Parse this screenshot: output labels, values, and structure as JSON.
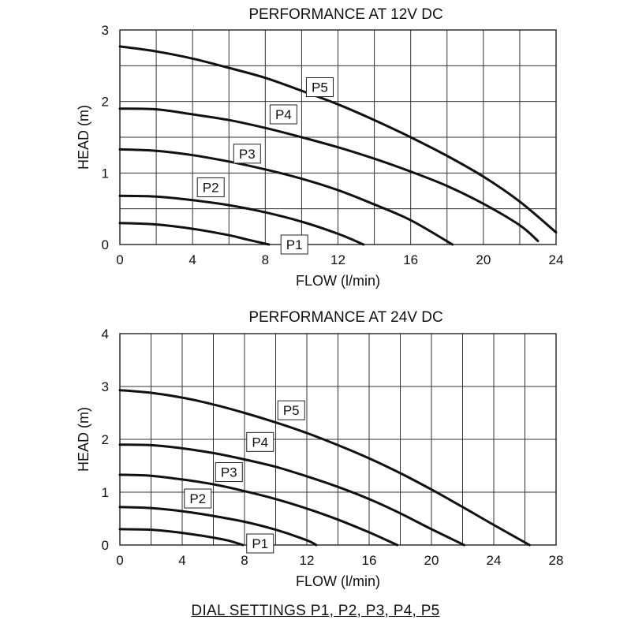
{
  "caption": "DIAL SETTINGS P1, P2, P3, P4, P5",
  "chart_data": [
    {
      "type": "line",
      "title": "PERFORMANCE AT 12V DC",
      "xlabel": "FLOW (l/min)",
      "ylabel": "HEAD (m)",
      "xlim": [
        0,
        24
      ],
      "ylim": [
        0,
        3
      ],
      "xticks": [
        0,
        4,
        8,
        12,
        16,
        20,
        24
      ],
      "yticks": [
        0,
        1,
        2,
        3
      ],
      "x_grid_step": 2,
      "y_grid_step": 0.5,
      "grid": true,
      "series": [
        {
          "name": "P1",
          "x": [
            0,
            2,
            4,
            6,
            7,
            8.2
          ],
          "y": [
            0.3,
            0.28,
            0.22,
            0.13,
            0.07,
            0.0
          ],
          "label_at": [
            9.6,
            0.0
          ]
        },
        {
          "name": "P2",
          "x": [
            0,
            2,
            4,
            6,
            8,
            10,
            12,
            13.4
          ],
          "y": [
            0.68,
            0.67,
            0.62,
            0.55,
            0.45,
            0.32,
            0.15,
            0.0
          ],
          "label_at": [
            5.0,
            0.8
          ]
        },
        {
          "name": "P3",
          "x": [
            0,
            2,
            4,
            6,
            8,
            10,
            12,
            14,
            16,
            18.3
          ],
          "y": [
            1.33,
            1.31,
            1.25,
            1.16,
            1.05,
            0.92,
            0.76,
            0.56,
            0.34,
            0.0
          ],
          "label_at": [
            7.0,
            1.27
          ]
        },
        {
          "name": "P4",
          "x": [
            0,
            2,
            4,
            6,
            8,
            10,
            12,
            14,
            16,
            18,
            20,
            22,
            23
          ],
          "y": [
            1.9,
            1.89,
            1.82,
            1.74,
            1.63,
            1.5,
            1.36,
            1.2,
            1.02,
            0.82,
            0.57,
            0.27,
            0.05
          ],
          "label_at": [
            9.0,
            1.82
          ]
        },
        {
          "name": "P5",
          "x": [
            0,
            2,
            4,
            6,
            8,
            10,
            12,
            14,
            16,
            18,
            20,
            22,
            24
          ],
          "y": [
            2.77,
            2.7,
            2.6,
            2.47,
            2.33,
            2.15,
            1.96,
            1.74,
            1.5,
            1.24,
            0.95,
            0.6,
            0.17
          ],
          "label_at": [
            11.0,
            2.2
          ]
        }
      ]
    },
    {
      "type": "line",
      "title": "PERFORMANCE AT 24V DC",
      "xlabel": "FLOW (l/min)",
      "ylabel": "HEAD (m)",
      "xlim": [
        0,
        28
      ],
      "ylim": [
        0,
        4
      ],
      "xticks": [
        0,
        4,
        8,
        12,
        16,
        20,
        24,
        28
      ],
      "yticks": [
        0,
        1,
        2,
        3,
        4
      ],
      "x_grid_step": 2,
      "y_grid_step": 1,
      "grid": true,
      "series": [
        {
          "name": "P1",
          "x": [
            0,
            2,
            4,
            6,
            7,
            7.9
          ],
          "y": [
            0.3,
            0.29,
            0.23,
            0.14,
            0.08,
            0.0
          ],
          "label_at": [
            9.0,
            0.03
          ]
        },
        {
          "name": "P2",
          "x": [
            0,
            2,
            4,
            6,
            8,
            10,
            12,
            12.6
          ],
          "y": [
            0.72,
            0.7,
            0.64,
            0.55,
            0.44,
            0.29,
            0.09,
            0.0
          ],
          "label_at": [
            5.0,
            0.88
          ]
        },
        {
          "name": "P3",
          "x": [
            0,
            2,
            4,
            6,
            8,
            10,
            12,
            14,
            16,
            17.8
          ],
          "y": [
            1.33,
            1.31,
            1.24,
            1.15,
            1.02,
            0.87,
            0.69,
            0.48,
            0.24,
            0.0
          ],
          "label_at": [
            7.0,
            1.38
          ]
        },
        {
          "name": "P4",
          "x": [
            0,
            2,
            4,
            6,
            8,
            10,
            12,
            14,
            16,
            18,
            20,
            22.1
          ],
          "y": [
            1.9,
            1.89,
            1.83,
            1.74,
            1.62,
            1.48,
            1.3,
            1.1,
            0.87,
            0.6,
            0.3,
            0.0
          ],
          "label_at": [
            9.0,
            1.95
          ]
        },
        {
          "name": "P5",
          "x": [
            0,
            2,
            4,
            6,
            8,
            10,
            12,
            14,
            16,
            18,
            20,
            22,
            24,
            26.3
          ],
          "y": [
            2.93,
            2.88,
            2.79,
            2.66,
            2.5,
            2.32,
            2.12,
            1.89,
            1.64,
            1.36,
            1.05,
            0.72,
            0.38,
            0.0
          ],
          "label_at": [
            11.0,
            2.55
          ]
        }
      ]
    }
  ]
}
